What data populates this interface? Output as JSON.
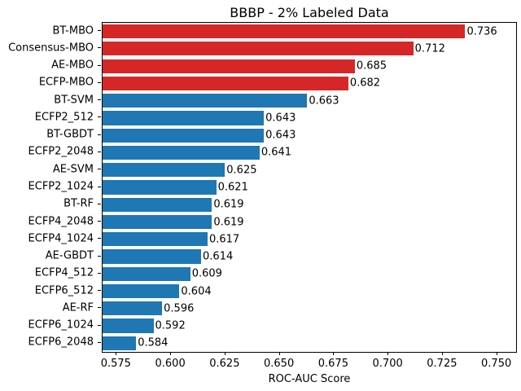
{
  "title": "BBBP - 2% Labeled Data",
  "xlabel": "ROC-AUC Score",
  "colors": {
    "mbo_bar": "#d62728",
    "baseline_bar": "#1f77b4",
    "background": "#ffffff",
    "spine": "#000000",
    "text": "#000000"
  },
  "chart_data": {
    "type": "bar",
    "orientation": "horizontal",
    "title": "BBBP - 2% Labeled Data",
    "xlabel": "ROC-AUC Score",
    "ylabel": "",
    "grid": false,
    "legend": false,
    "xlim": [
      0.5685,
      0.7595
    ],
    "xticks": [
      0.575,
      0.6,
      0.625,
      0.65,
      0.675,
      0.7,
      0.725,
      0.75
    ],
    "xtick_labels": [
      "0.575",
      "0.600",
      "0.625",
      "0.650",
      "0.675",
      "0.700",
      "0.725",
      "0.750"
    ],
    "categories": [
      "BT-MBO",
      "Consensus-MBO",
      "AE-MBO",
      "ECFP-MBO",
      "BT-SVM",
      "ECFP2_512",
      "BT-GBDT",
      "ECFP2_2048",
      "AE-SVM",
      "ECFP2_1024",
      "BT-RF",
      "ECFP4_2048",
      "ECFP4_1024",
      "AE-GBDT",
      "ECFP4_512",
      "ECFP6_512",
      "AE-RF",
      "ECFP6_1024",
      "ECFP6_2048"
    ],
    "values": [
      0.736,
      0.712,
      0.685,
      0.682,
      0.663,
      0.643,
      0.643,
      0.641,
      0.625,
      0.621,
      0.619,
      0.619,
      0.617,
      0.614,
      0.609,
      0.604,
      0.596,
      0.592,
      0.584
    ],
    "value_labels": [
      "0.736",
      "0.712",
      "0.685",
      "0.682",
      "0.663",
      "0.643",
      "0.643",
      "0.641",
      "0.625",
      "0.621",
      "0.619",
      "0.619",
      "0.617",
      "0.614",
      "0.609",
      "0.604",
      "0.596",
      "0.592",
      "0.584"
    ],
    "bar_colors": [
      "#d62728",
      "#d62728",
      "#d62728",
      "#d62728",
      "#1f77b4",
      "#1f77b4",
      "#1f77b4",
      "#1f77b4",
      "#1f77b4",
      "#1f77b4",
      "#1f77b4",
      "#1f77b4",
      "#1f77b4",
      "#1f77b4",
      "#1f77b4",
      "#1f77b4",
      "#1f77b4",
      "#1f77b4",
      "#1f77b4"
    ]
  }
}
